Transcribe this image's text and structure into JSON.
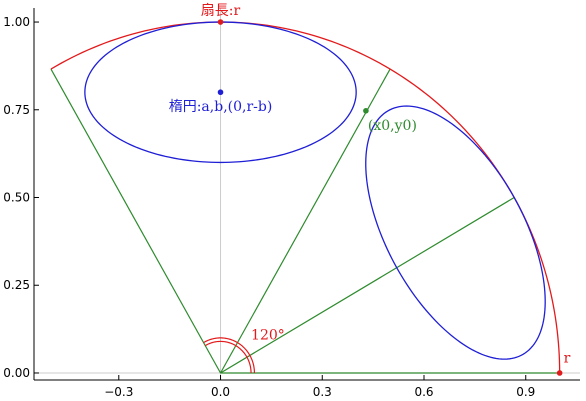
{
  "chart_data": {
    "type": "line",
    "xlim": [
      -0.55,
      1.06
    ],
    "ylim": [
      -0.02,
      1.04
    ],
    "x_ticks": [
      "−0.3",
      "0.0",
      "0.3",
      "0.6",
      "0.9"
    ],
    "x_tick_values": [
      -0.3,
      0.0,
      0.3,
      0.6,
      0.9
    ],
    "y_ticks": [
      "0.00",
      "0.25",
      "0.50",
      "0.75",
      "1.00"
    ],
    "y_tick_values": [
      0.0,
      0.25,
      0.5,
      0.75,
      1.0
    ],
    "grid": false,
    "colors": {
      "arc": "#e31a1c",
      "ellipse": "#1f1fd6",
      "lines": "#2e8b2e",
      "zero_axis": "#cccccc"
    },
    "sector": {
      "radius": 1.0,
      "start_deg": 0,
      "end_deg": 120
    },
    "ellipse_top": {
      "cx": 0.0,
      "cy": 0.8,
      "a": 0.4,
      "b": 0.2,
      "rotation_deg": 0
    },
    "ellipse_right": {
      "cx": 0.6928,
      "cy": 0.4,
      "a": 0.4,
      "b": 0.2,
      "rotation_deg": -60
    },
    "green_rays_deg": [
      0,
      30,
      60,
      120
    ],
    "tangent_point": {
      "x": 0.4287,
      "y": 0.7471
    },
    "angle_arcs_radius": [
      0.09,
      0.1
    ],
    "points": [
      {
        "name": "top",
        "x": 0.0,
        "y": 1.0,
        "color": "#e31a1c"
      },
      {
        "name": "r",
        "x": 1.0,
        "y": 0.0,
        "color": "#e31a1c"
      },
      {
        "name": "center",
        "x": 0.0,
        "y": 0.8,
        "color": "#1f1fd6"
      },
      {
        "name": "x0y0",
        "x": 0.4287,
        "y": 0.7471,
        "color": "#2e8b2e"
      }
    ],
    "annotations": {
      "sector_label": "扇長:r",
      "ellipse_label": "楕円:a,b,(0,r-b)",
      "point_label": "(x0,y0)",
      "angle_label": "120°",
      "radius_label": "r"
    }
  }
}
